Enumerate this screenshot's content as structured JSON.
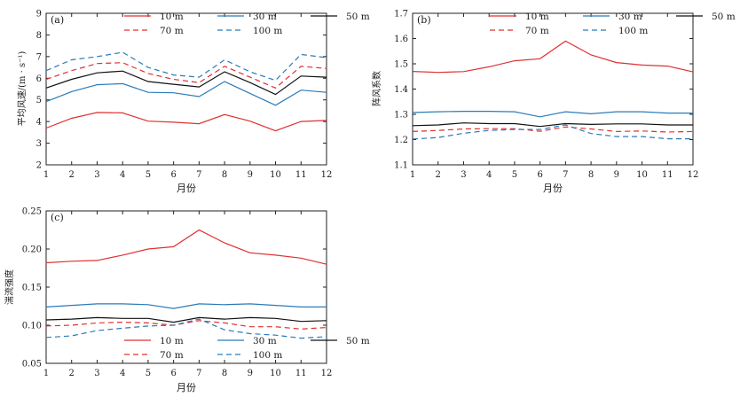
{
  "chart_data": [
    {
      "type": "line",
      "panel_label": "(a)",
      "ylabel": "平均风速/(m · s⁻¹)",
      "xlabel": "月份",
      "x": [
        1,
        2,
        3,
        4,
        5,
        6,
        7,
        8,
        9,
        10,
        11,
        12
      ],
      "xticks": [
        "1",
        "2",
        "3",
        "4",
        "5",
        "6",
        "7",
        "8",
        "9",
        "10",
        "11",
        "12"
      ],
      "ylim": [
        2,
        9
      ],
      "yticks": [
        "2",
        "3",
        "4",
        "5",
        "6",
        "7",
        "8",
        "9"
      ],
      "legend": {
        "placement": "top-right",
        "columns": 3
      },
      "series": [
        {
          "name": "10  m",
          "color": "#e03030",
          "dash": "solid",
          "values": [
            3.7,
            4.15,
            4.42,
            4.4,
            4.02,
            3.97,
            3.9,
            4.32,
            4.02,
            3.57,
            4.0,
            4.05
          ]
        },
        {
          "name": "30  m",
          "color": "#2a7ab8",
          "dash": "solid",
          "values": [
            4.92,
            5.38,
            5.7,
            5.75,
            5.35,
            5.33,
            5.15,
            5.85,
            5.3,
            4.75,
            5.45,
            5.35
          ]
        },
        {
          "name": "50  m",
          "color": "#111111",
          "dash": "solid",
          "values": [
            5.55,
            5.95,
            6.25,
            6.33,
            5.85,
            5.72,
            5.6,
            6.3,
            5.8,
            5.25,
            6.1,
            6.05
          ]
        },
        {
          "name": "70  m",
          "color": "#e03030",
          "dash": "dashed",
          "values": [
            5.95,
            6.35,
            6.68,
            6.72,
            6.22,
            5.95,
            5.8,
            6.55,
            6.05,
            5.55,
            6.55,
            6.45
          ]
        },
        {
          "name": "100  m",
          "color": "#2a7ab8",
          "dash": "dashed",
          "values": [
            6.35,
            6.85,
            7.0,
            7.2,
            6.5,
            6.15,
            6.05,
            6.85,
            6.3,
            5.9,
            7.1,
            6.95
          ]
        }
      ]
    },
    {
      "type": "line",
      "panel_label": "(b)",
      "ylabel": "阵风系数",
      "xlabel": "月份",
      "x": [
        1,
        2,
        3,
        4,
        5,
        6,
        7,
        8,
        9,
        10,
        11,
        12
      ],
      "xticks": [
        "1",
        "2",
        "3",
        "4",
        "5",
        "6",
        "7",
        "8",
        "9",
        "10",
        "11",
        "12"
      ],
      "ylim": [
        1.1,
        1.7
      ],
      "yticks": [
        "1.1",
        "1.2",
        "1.3",
        "1.4",
        "1.5",
        "1.6",
        "1.7"
      ],
      "legend": {
        "placement": "top-right",
        "columns": 3
      },
      "series": [
        {
          "name": "10  m",
          "color": "#e03030",
          "dash": "solid",
          "values": [
            1.47,
            1.466,
            1.469,
            1.488,
            1.512,
            1.52,
            1.59,
            1.535,
            1.505,
            1.495,
            1.491,
            1.468
          ]
        },
        {
          "name": "30  m",
          "color": "#2a7ab8",
          "dash": "solid",
          "values": [
            1.307,
            1.31,
            1.312,
            1.312,
            1.31,
            1.29,
            1.31,
            1.302,
            1.31,
            1.31,
            1.305,
            1.305
          ]
        },
        {
          "name": "50  m",
          "color": "#111111",
          "dash": "solid",
          "values": [
            1.255,
            1.258,
            1.266,
            1.263,
            1.263,
            1.252,
            1.263,
            1.26,
            1.262,
            1.262,
            1.258,
            1.258
          ]
        },
        {
          "name": "70  m",
          "color": "#e03030",
          "dash": "dashed",
          "values": [
            1.232,
            1.236,
            1.242,
            1.243,
            1.243,
            1.233,
            1.25,
            1.242,
            1.232,
            1.234,
            1.23,
            1.232
          ]
        },
        {
          "name": "100  m",
          "color": "#2a7ab8",
          "dash": "dashed",
          "values": [
            1.202,
            1.208,
            1.225,
            1.236,
            1.24,
            1.24,
            1.258,
            1.224,
            1.212,
            1.212,
            1.203,
            1.203
          ]
        }
      ]
    },
    {
      "type": "line",
      "panel_label": "(c)",
      "ylabel": "湍流强度",
      "xlabel": "月份",
      "x": [
        1,
        2,
        3,
        4,
        5,
        6,
        7,
        8,
        9,
        10,
        11,
        12
      ],
      "xticks": [
        "1",
        "2",
        "3",
        "4",
        "5",
        "6",
        "7",
        "8",
        "9",
        "10",
        "11",
        "12"
      ],
      "ylim": [
        0.05,
        0.25
      ],
      "yticks": [
        "0.05",
        "0.10",
        "0.15",
        "0.20",
        "0.25"
      ],
      "legend": {
        "placement": "bottom-right",
        "columns": 3
      },
      "series": [
        {
          "name": "10  m",
          "color": "#e03030",
          "dash": "solid",
          "values": [
            0.182,
            0.184,
            0.185,
            0.192,
            0.2,
            0.203,
            0.225,
            0.208,
            0.195,
            0.192,
            0.188,
            0.18
          ]
        },
        {
          "name": "30  m",
          "color": "#2a7ab8",
          "dash": "solid",
          "values": [
            0.124,
            0.126,
            0.128,
            0.128,
            0.127,
            0.122,
            0.128,
            0.127,
            0.128,
            0.126,
            0.124,
            0.124
          ]
        },
        {
          "name": "50  m",
          "color": "#111111",
          "dash": "solid",
          "values": [
            0.107,
            0.108,
            0.11,
            0.109,
            0.109,
            0.104,
            0.11,
            0.108,
            0.11,
            0.109,
            0.105,
            0.106
          ]
        },
        {
          "name": "70  m",
          "color": "#e03030",
          "dash": "dashed",
          "values": [
            0.099,
            0.1,
            0.103,
            0.104,
            0.103,
            0.1,
            0.106,
            0.103,
            0.098,
            0.098,
            0.095,
            0.097
          ]
        },
        {
          "name": "100  m",
          "color": "#2a7ab8",
          "dash": "dashed",
          "values": [
            0.084,
            0.086,
            0.093,
            0.096,
            0.099,
            0.1,
            0.108,
            0.094,
            0.089,
            0.087,
            0.083,
            0.085
          ]
        }
      ]
    }
  ]
}
